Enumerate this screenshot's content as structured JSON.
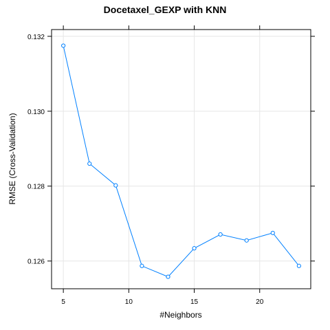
{
  "chart_data": {
    "type": "line",
    "title": "Docetaxel_GEXP with KNN",
    "xlabel": "#Neighbors",
    "ylabel": "RMSE (Cross-Validation)",
    "x": [
      5,
      7,
      9,
      11,
      13,
      15,
      17,
      19,
      21,
      23
    ],
    "series": [
      {
        "values": [
          0.13175,
          0.1286,
          0.12802,
          0.12587,
          0.12558,
          0.12634,
          0.12671,
          0.12655,
          0.12675,
          0.12587
        ],
        "color": "#0080ff"
      }
    ],
    "xlim": [
      4.1,
      23.9
    ],
    "ylim": [
      0.12526,
      0.13218
    ],
    "xticks": [
      5,
      10,
      15,
      20
    ],
    "xtick_labels": [
      "5",
      "10",
      "15",
      "20"
    ],
    "yticks": [
      0.126,
      0.128,
      0.13,
      0.132
    ],
    "ytick_labels": [
      "0.126",
      "0.128",
      "0.130",
      "0.132"
    ],
    "grid": true,
    "grid_color": "#e6e6e6",
    "marker": "open-circle"
  }
}
